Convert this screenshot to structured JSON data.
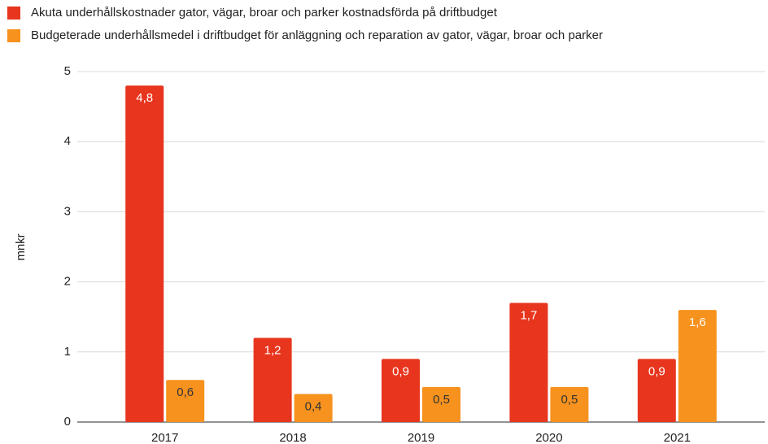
{
  "chart_data": {
    "type": "bar",
    "categories": [
      "2017",
      "2018",
      "2019",
      "2020",
      "2021"
    ],
    "series": [
      {
        "name": "Akuta underhållskostnader gator, vägar, broar och parker kostnadsförda på driftbudget",
        "color": "#e8351e",
        "values": [
          4.8,
          1.2,
          0.9,
          1.7,
          0.9
        ],
        "value_labels": [
          "4,8",
          "1,2",
          "0,9",
          "1,7",
          "0,9"
        ]
      },
      {
        "name": "Budgeterade underhållsmedel i driftbudget för anläggning och reparation av gator, vägar, broar och parker",
        "color": "#f7921e",
        "values": [
          0.6,
          0.4,
          0.5,
          0.5,
          1.6
        ],
        "value_labels": [
          "0,6",
          "0,4",
          "0,5",
          "0,5",
          "1,6"
        ]
      }
    ],
    "ylabel": "mnkr",
    "ylim": [
      0,
      5
    ],
    "yticks": [
      0,
      1,
      2,
      3,
      4,
      5
    ],
    "grid": true,
    "legend": "top-left"
  }
}
